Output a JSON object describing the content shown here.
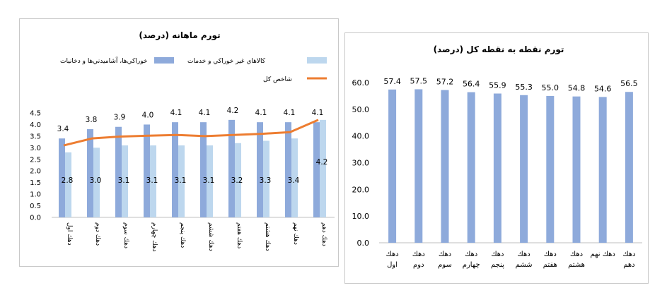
{
  "chart_data": [
    {
      "type": "bar+line",
      "title": "تورم ماهانه (درصد)",
      "categories": [
        "دهك اول",
        "دهك دوم",
        "دهك سوم",
        "دهك چهارم",
        "دهك پنجم",
        "دهك ششم",
        "دهك هفتم",
        "دهك هشتم",
        "دهك نهم",
        "دهك دهم"
      ],
      "series": [
        {
          "name": "خوراكي‌ها، آشاميدني‌ها و دخانيات",
          "type": "bar",
          "color": "#8eaadb",
          "values": [
            3.4,
            3.8,
            3.9,
            4.0,
            4.1,
            4.1,
            4.2,
            4.1,
            4.1,
            4.1
          ]
        },
        {
          "name": "كالاهاي غير خوراكي و خدمات",
          "type": "bar",
          "color": "#bdd7ee",
          "values": [
            2.8,
            3.0,
            3.1,
            3.1,
            3.1,
            3.1,
            3.2,
            3.3,
            3.4,
            4.2
          ]
        },
        {
          "name": "شاخص كل",
          "type": "line",
          "color": "#ed7d31",
          "values": [
            3.1,
            3.4,
            3.48,
            3.52,
            3.55,
            3.5,
            3.55,
            3.6,
            3.67,
            4.2
          ]
        }
      ],
      "ylim": [
        0,
        4.5
      ],
      "yticks": [
        "0.0",
        "0.5",
        "1.0",
        "1.5",
        "2.0",
        "2.5",
        "3.0",
        "3.5",
        "4.0",
        "4.5"
      ],
      "grid": false,
      "legend_position": "top"
    },
    {
      "type": "bar",
      "title": "تورم نقطه به نقطه كل (درصد)",
      "categories": [
        [
          "دهك",
          "اول"
        ],
        [
          "دهك",
          "دوم"
        ],
        [
          "دهك",
          "سوم"
        ],
        [
          "دهك",
          "چهارم"
        ],
        [
          "دهك",
          "پنجم"
        ],
        [
          "دهك",
          "ششم"
        ],
        [
          "دهك",
          "هفتم"
        ],
        [
          "دهك",
          "هشتم"
        ],
        [
          "دهك نهم"
        ],
        [
          "دهك",
          "دهم"
        ]
      ],
      "values": [
        57.4,
        57.5,
        57.2,
        56.4,
        55.9,
        55.3,
        55.0,
        54.8,
        54.6,
        56.5
      ],
      "value_labels": [
        "57.4",
        "57.5",
        "57.2",
        "56.4",
        "55.9",
        "55.3",
        "55.0",
        "54.8",
        "54.6",
        "56.5"
      ],
      "color": "#8eaadb",
      "ylim": [
        0,
        60
      ],
      "yticks": [
        "0.0",
        "10.0",
        "20.0",
        "30.0",
        "40.0",
        "50.0",
        "60.0"
      ],
      "grid": false
    }
  ]
}
